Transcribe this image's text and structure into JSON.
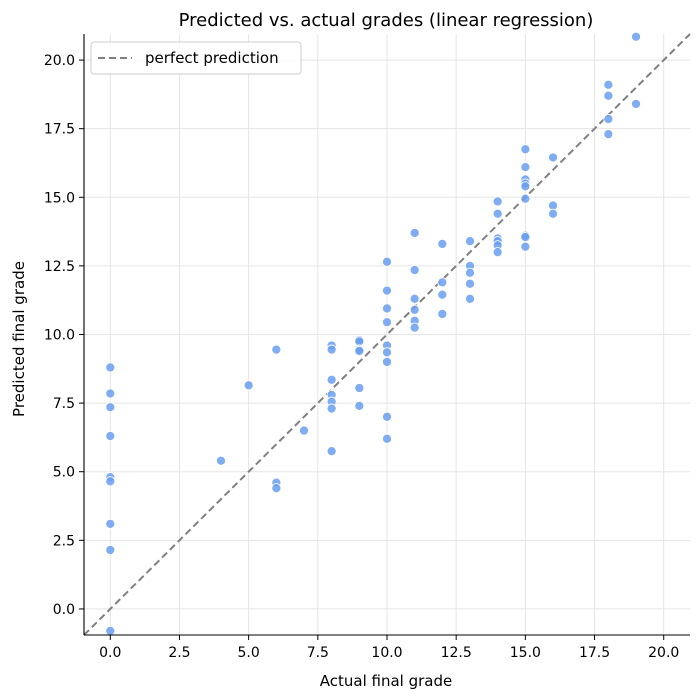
{
  "chart_data": {
    "type": "scatter",
    "title": "Predicted vs. actual grades (linear regression)",
    "xlabel": "Actual final grade",
    "ylabel": "Predicted final grade",
    "xlim": [
      -0.95,
      20.95
    ],
    "ylim": [
      -0.95,
      20.95
    ],
    "xticks": [
      0.0,
      2.5,
      5.0,
      7.5,
      10.0,
      12.5,
      15.0,
      17.5,
      20.0
    ],
    "yticks": [
      0.0,
      2.5,
      5.0,
      7.5,
      10.0,
      12.5,
      15.0,
      17.5,
      20.0
    ],
    "xtick_labels": [
      "0.0",
      "2.5",
      "5.0",
      "7.5",
      "10.0",
      "12.5",
      "15.0",
      "17.5",
      "20.0"
    ],
    "ytick_labels": [
      "0.0",
      "2.5",
      "5.0",
      "7.5",
      "10.0",
      "12.5",
      "15.0",
      "17.5",
      "20.0"
    ],
    "grid": true,
    "legend": {
      "position": "top-left",
      "entries": [
        "perfect prediction"
      ]
    },
    "reference_line": {
      "name": "perfect prediction",
      "style": "dashed",
      "color": "#808080",
      "from": [
        -0.95,
        -0.95
      ],
      "to": [
        20.95,
        20.95
      ]
    },
    "point_color": "#6a9ff0",
    "points": [
      [
        0,
        8.8
      ],
      [
        0,
        7.85
      ],
      [
        0,
        7.35
      ],
      [
        0,
        6.3
      ],
      [
        0,
        4.8
      ],
      [
        0,
        4.65
      ],
      [
        0,
        3.1
      ],
      [
        0,
        2.15
      ],
      [
        0,
        -0.8
      ],
      [
        4,
        5.4
      ],
      [
        5,
        8.15
      ],
      [
        6,
        9.45
      ],
      [
        6,
        4.6
      ],
      [
        6,
        4.4
      ],
      [
        7,
        6.5
      ],
      [
        8,
        9.6
      ],
      [
        8,
        9.45
      ],
      [
        8,
        8.35
      ],
      [
        8,
        7.8
      ],
      [
        8,
        7.55
      ],
      [
        8,
        7.3
      ],
      [
        8,
        5.75
      ],
      [
        9,
        9.8
      ],
      [
        9,
        9.75
      ],
      [
        9,
        9.45
      ],
      [
        9,
        9.4
      ],
      [
        9,
        8.05
      ],
      [
        9,
        7.4
      ],
      [
        10,
        12.65
      ],
      [
        10,
        11.6
      ],
      [
        10,
        10.95
      ],
      [
        10,
        10.45
      ],
      [
        10,
        9.6
      ],
      [
        10,
        9.35
      ],
      [
        10,
        9.0
      ],
      [
        10,
        7.0
      ],
      [
        10,
        6.2
      ],
      [
        11,
        13.7
      ],
      [
        11,
        12.35
      ],
      [
        11,
        11.3
      ],
      [
        11,
        10.9
      ],
      [
        11,
        10.5
      ],
      [
        11,
        10.25
      ],
      [
        12,
        13.3
      ],
      [
        12,
        11.9
      ],
      [
        12,
        11.45
      ],
      [
        12,
        10.75
      ],
      [
        13,
        13.4
      ],
      [
        13,
        12.5
      ],
      [
        13,
        12.25
      ],
      [
        13,
        11.85
      ],
      [
        13,
        11.3
      ],
      [
        14,
        14.85
      ],
      [
        14,
        14.4
      ],
      [
        14,
        13.5
      ],
      [
        14,
        13.4
      ],
      [
        14,
        13.25
      ],
      [
        14,
        13.0
      ],
      [
        15,
        16.75
      ],
      [
        15,
        16.1
      ],
      [
        15,
        15.65
      ],
      [
        15,
        15.5
      ],
      [
        15,
        15.4
      ],
      [
        15,
        14.95
      ],
      [
        15,
        13.6
      ],
      [
        15,
        13.55
      ],
      [
        15,
        13.2
      ],
      [
        16,
        16.45
      ],
      [
        16,
        14.7
      ],
      [
        16,
        14.4
      ],
      [
        18,
        19.1
      ],
      [
        18,
        18.7
      ],
      [
        18,
        17.85
      ],
      [
        18,
        17.3
      ],
      [
        19,
        20.85
      ],
      [
        19,
        18.4
      ]
    ]
  }
}
